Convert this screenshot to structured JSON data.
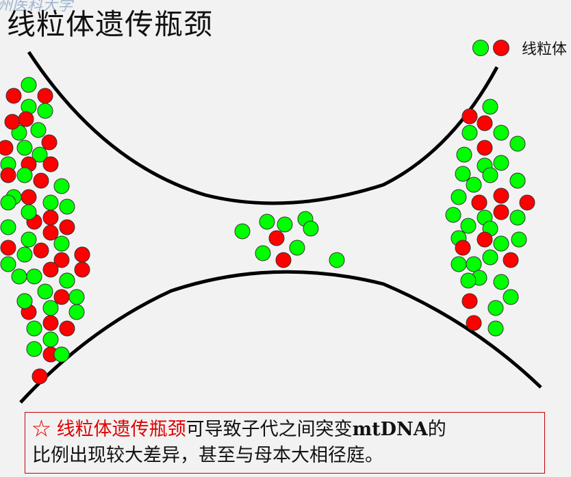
{
  "title": "线粒体遗传瓶颈",
  "watermark": "州医科大学",
  "legend": {
    "label": "线粒体"
  },
  "colors": {
    "green": "#00ff00",
    "red": "#ff0000",
    "note_border": "#c00000",
    "note_highlight": "#e00000"
  },
  "note": {
    "star": "☆",
    "highlight": "线粒体遗传瓶颈",
    "text_1": "可导致子代之间突变",
    "bold": "mtDNA",
    "text_2": "的",
    "line_2": "比例出现较大差异，甚至与母本大相径庭。"
  },
  "mitochondria": {
    "left_cell": [
      [
        "g"
      ],
      [
        "r"
      ],
      [
        "g"
      ],
      [
        "r"
      ],
      [
        "g"
      ],
      [
        "g"
      ],
      [
        "r"
      ],
      [
        "r"
      ],
      [
        "g"
      ],
      [
        "r"
      ],
      [
        "r"
      ],
      [
        "g"
      ],
      [
        "g"
      ],
      [
        "r"
      ],
      [
        "g"
      ],
      [
        "r"
      ],
      [
        "g"
      ],
      [
        "r"
      ],
      [
        "r"
      ],
      [
        "g"
      ],
      [
        "g"
      ],
      [
        "r"
      ],
      [
        "g"
      ],
      [
        "g"
      ],
      [
        "r"
      ],
      [
        "r"
      ],
      [
        "g"
      ],
      [
        "r"
      ],
      [
        "g"
      ],
      [
        "g"
      ],
      [
        "r"
      ],
      [
        "g"
      ],
      [
        "r"
      ],
      [
        "g"
      ],
      [
        "r"
      ],
      [
        "r"
      ],
      [
        "g"
      ],
      [
        "r"
      ],
      [
        "g"
      ],
      [
        "g"
      ],
      [
        "r"
      ],
      [
        "r"
      ],
      [
        "r"
      ],
      [
        "g"
      ],
      [
        "g"
      ],
      [
        "r"
      ],
      [
        "g"
      ],
      [
        "g"
      ],
      [
        "r"
      ],
      [
        "g"
      ],
      [
        "r"
      ],
      [
        "g"
      ],
      [
        "r"
      ],
      [
        "g"
      ],
      [
        "g"
      ],
      [
        "r"
      ],
      [
        "g"
      ],
      [
        "r"
      ],
      [
        "g"
      ],
      [
        "r"
      ],
      [
        "g"
      ],
      [
        "g"
      ]
    ],
    "bottleneck": [
      [
        "g"
      ],
      [
        "g"
      ],
      [
        "g"
      ],
      [
        "g"
      ],
      [
        "g"
      ],
      [
        "r"
      ],
      [
        "g"
      ],
      [
        "g"
      ],
      [
        "r"
      ],
      [
        "g"
      ]
    ],
    "right_cell": [
      [
        "g"
      ],
      [
        "r"
      ],
      [
        "r"
      ],
      [
        "g"
      ],
      [
        "g"
      ],
      [
        "g"
      ],
      [
        "r"
      ],
      [
        "g"
      ],
      [
        "g"
      ],
      [
        "g"
      ],
      [
        "g"
      ],
      [
        "g"
      ],
      [
        "g"
      ],
      [
        "g"
      ],
      [
        "r"
      ],
      [
        "g"
      ],
      [
        "r"
      ],
      [
        "r"
      ],
      [
        "g"
      ],
      [
        "g"
      ],
      [
        "r"
      ],
      [
        "g"
      ],
      [
        "g"
      ],
      [
        "g"
      ],
      [
        "g"
      ],
      [
        "r"
      ],
      [
        "g"
      ],
      [
        "g"
      ],
      [
        "r"
      ],
      [
        "g"
      ],
      [
        "r"
      ],
      [
        "g"
      ],
      [
        "g"
      ],
      [
        "g"
      ],
      [
        "g"
      ],
      [
        "g"
      ],
      [
        "g"
      ],
      [
        "r"
      ],
      [
        "g"
      ],
      [
        "r"
      ],
      [
        "g"
      ],
      [
        "r"
      ],
      [
        "g"
      ]
    ]
  }
}
